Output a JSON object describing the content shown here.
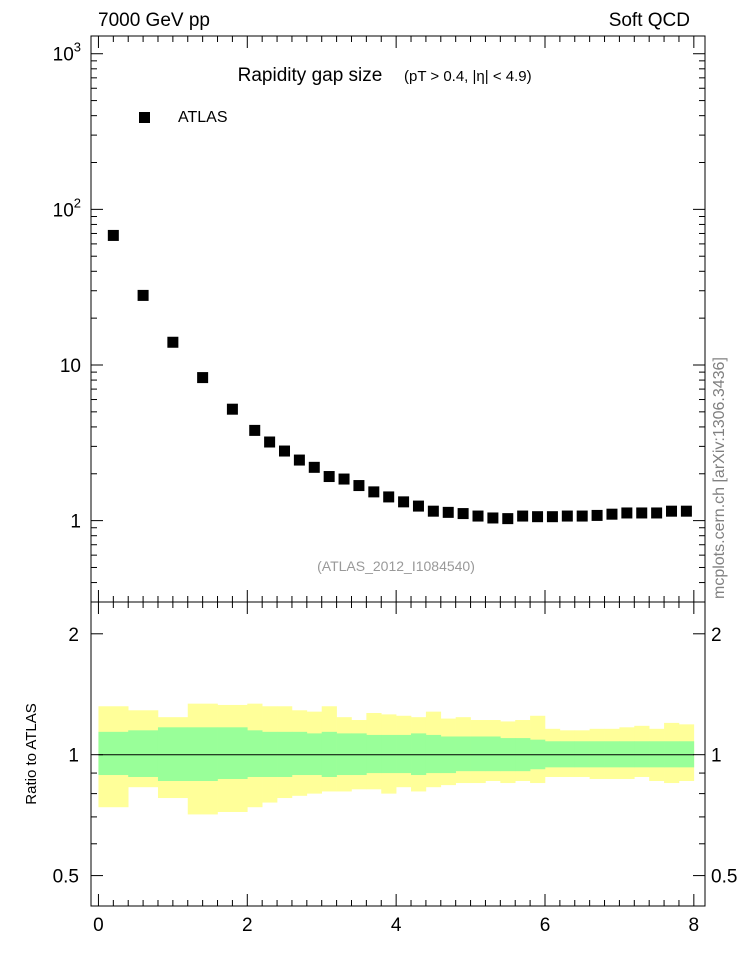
{
  "header": {
    "left": "7000 GeV pp",
    "right": "Soft QCD"
  },
  "side_label": "mcplots.cern.ch [arXiv:1306.3436]",
  "colors": {
    "marker": "#000000",
    "band_inner": "#99ff99",
    "band_outer": "#ffff99"
  },
  "chart_data": [
    {
      "type": "scatter",
      "title": "Rapidity gap size",
      "subtitle": "(pT > 0.4, |η| < 4.9)",
      "annotation": "(ATLAS_2012_I1084540)",
      "legend": {
        "entries": [
          "ATLAS"
        ],
        "placement": "top-left"
      },
      "x_scale": "linear",
      "y_scale": "log",
      "xlim": [
        -0.1,
        8.15
      ],
      "ylim": [
        0.3,
        1300
      ],
      "y_ticks": [
        {
          "value": 1,
          "label": "1"
        },
        {
          "value": 10,
          "label": "10"
        },
        {
          "value": 100,
          "base": "10",
          "exp": "2"
        },
        {
          "value": 1000,
          "base": "10",
          "exp": "3"
        }
      ],
      "series": [
        {
          "name": "ATLAS",
          "x": [
            0.2,
            0.6,
            1.0,
            1.4,
            1.8,
            2.1,
            2.3,
            2.5,
            2.7,
            2.9,
            3.1,
            3.3,
            3.5,
            3.7,
            3.9,
            4.1,
            4.3,
            4.5,
            4.7,
            4.9,
            5.1,
            5.3,
            5.5,
            5.7,
            5.9,
            6.1,
            6.3,
            6.5,
            6.7,
            6.9,
            7.1,
            7.3,
            7.5,
            7.7,
            7.9
          ],
          "y": [
            68,
            28,
            14,
            8.3,
            5.2,
            3.8,
            3.2,
            2.8,
            2.45,
            2.2,
            1.92,
            1.85,
            1.68,
            1.53,
            1.42,
            1.32,
            1.24,
            1.15,
            1.13,
            1.11,
            1.07,
            1.04,
            1.03,
            1.07,
            1.06,
            1.06,
            1.07,
            1.07,
            1.08,
            1.1,
            1.12,
            1.12,
            1.12,
            1.15,
            1.15
          ]
        }
      ]
    },
    {
      "type": "area",
      "ylabel": "Ratio to ATLAS",
      "x_scale": "linear",
      "y_scale": "log",
      "xlim": [
        -0.1,
        8.15
      ],
      "ylim": [
        0.42,
        2.4
      ],
      "x_ticks": [
        0,
        2,
        4,
        6,
        8
      ],
      "y_ticks": [
        0.5,
        1,
        2
      ],
      "reference_line": 1,
      "bins": [
        [
          0.0,
          0.4
        ],
        [
          0.4,
          0.8
        ],
        [
          0.8,
          1.2
        ],
        [
          1.2,
          1.6
        ],
        [
          1.6,
          2.0
        ],
        [
          2.0,
          2.2
        ],
        [
          2.2,
          2.4
        ],
        [
          2.4,
          2.6
        ],
        [
          2.6,
          2.8
        ],
        [
          2.8,
          3.0
        ],
        [
          3.0,
          3.2
        ],
        [
          3.2,
          3.4
        ],
        [
          3.4,
          3.6
        ],
        [
          3.6,
          3.8
        ],
        [
          3.8,
          4.0
        ],
        [
          4.0,
          4.2
        ],
        [
          4.2,
          4.4
        ],
        [
          4.4,
          4.6
        ],
        [
          4.6,
          4.8
        ],
        [
          4.8,
          5.0
        ],
        [
          5.0,
          5.2
        ],
        [
          5.2,
          5.4
        ],
        [
          5.4,
          5.6
        ],
        [
          5.6,
          5.8
        ],
        [
          5.8,
          6.0
        ],
        [
          6.0,
          6.2
        ],
        [
          6.2,
          6.4
        ],
        [
          6.4,
          6.6
        ],
        [
          6.6,
          6.8
        ],
        [
          6.8,
          7.0
        ],
        [
          7.0,
          7.2
        ],
        [
          7.2,
          7.4
        ],
        [
          7.4,
          7.6
        ],
        [
          7.6,
          7.8
        ],
        [
          7.8,
          8.0
        ]
      ],
      "inner_band": {
        "low": [
          0.89,
          0.88,
          0.86,
          0.86,
          0.87,
          0.88,
          0.88,
          0.88,
          0.89,
          0.89,
          0.88,
          0.89,
          0.89,
          0.9,
          0.9,
          0.9,
          0.89,
          0.9,
          0.9,
          0.91,
          0.91,
          0.91,
          0.91,
          0.91,
          0.92,
          0.93,
          0.93,
          0.93,
          0.93,
          0.93,
          0.93,
          0.93,
          0.93,
          0.93,
          0.93
        ],
        "high": [
          1.14,
          1.15,
          1.17,
          1.17,
          1.17,
          1.15,
          1.14,
          1.14,
          1.14,
          1.13,
          1.14,
          1.13,
          1.13,
          1.12,
          1.12,
          1.12,
          1.13,
          1.12,
          1.11,
          1.11,
          1.11,
          1.11,
          1.1,
          1.1,
          1.09,
          1.08,
          1.08,
          1.08,
          1.08,
          1.08,
          1.08,
          1.08,
          1.08,
          1.08,
          1.08
        ]
      },
      "outer_band": {
        "low": [
          0.74,
          0.83,
          0.78,
          0.71,
          0.72,
          0.74,
          0.76,
          0.78,
          0.79,
          0.8,
          0.81,
          0.81,
          0.82,
          0.82,
          0.8,
          0.83,
          0.81,
          0.83,
          0.84,
          0.85,
          0.85,
          0.86,
          0.85,
          0.86,
          0.85,
          0.88,
          0.88,
          0.88,
          0.87,
          0.87,
          0.87,
          0.88,
          0.86,
          0.85,
          0.86
        ],
        "high": [
          1.32,
          1.29,
          1.24,
          1.34,
          1.33,
          1.34,
          1.32,
          1.32,
          1.29,
          1.28,
          1.32,
          1.24,
          1.22,
          1.27,
          1.26,
          1.25,
          1.24,
          1.28,
          1.23,
          1.24,
          1.22,
          1.22,
          1.21,
          1.22,
          1.25,
          1.16,
          1.15,
          1.15,
          1.16,
          1.16,
          1.17,
          1.18,
          1.16,
          1.2,
          1.19
        ]
      }
    }
  ]
}
